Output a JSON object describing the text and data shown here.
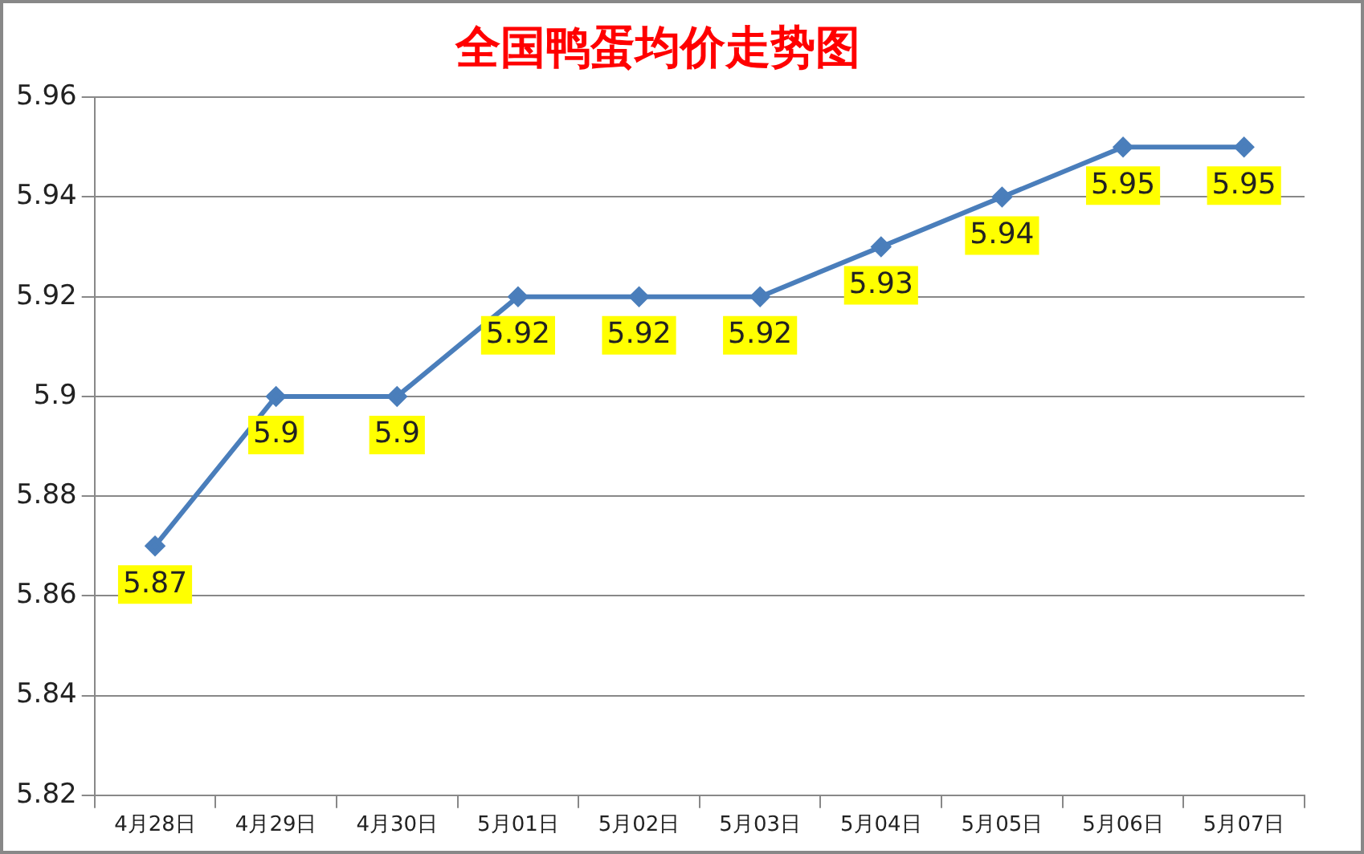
{
  "chart_data": {
    "type": "line",
    "title": "全国鸭蛋均价走势图",
    "categories": [
      "4月28日",
      "4月29日",
      "4月30日",
      "5月01日",
      "5月02日",
      "5月03日",
      "5月04日",
      "5月05日",
      "5月06日",
      "5月07日"
    ],
    "series": [
      {
        "color": "#4a7ebb",
        "values": [
          5.87,
          5.9,
          5.9,
          5.92,
          5.92,
          5.92,
          5.93,
          5.94,
          5.95,
          5.95
        ]
      }
    ],
    "ylim": [
      5.82,
      5.96
    ],
    "yticks": [
      5.82,
      5.84,
      5.86,
      5.88,
      5.9,
      5.92,
      5.94,
      5.96
    ],
    "grid": "y",
    "legend": false,
    "marker": "diamond",
    "line_style": "solid",
    "data_labels": true
  }
}
